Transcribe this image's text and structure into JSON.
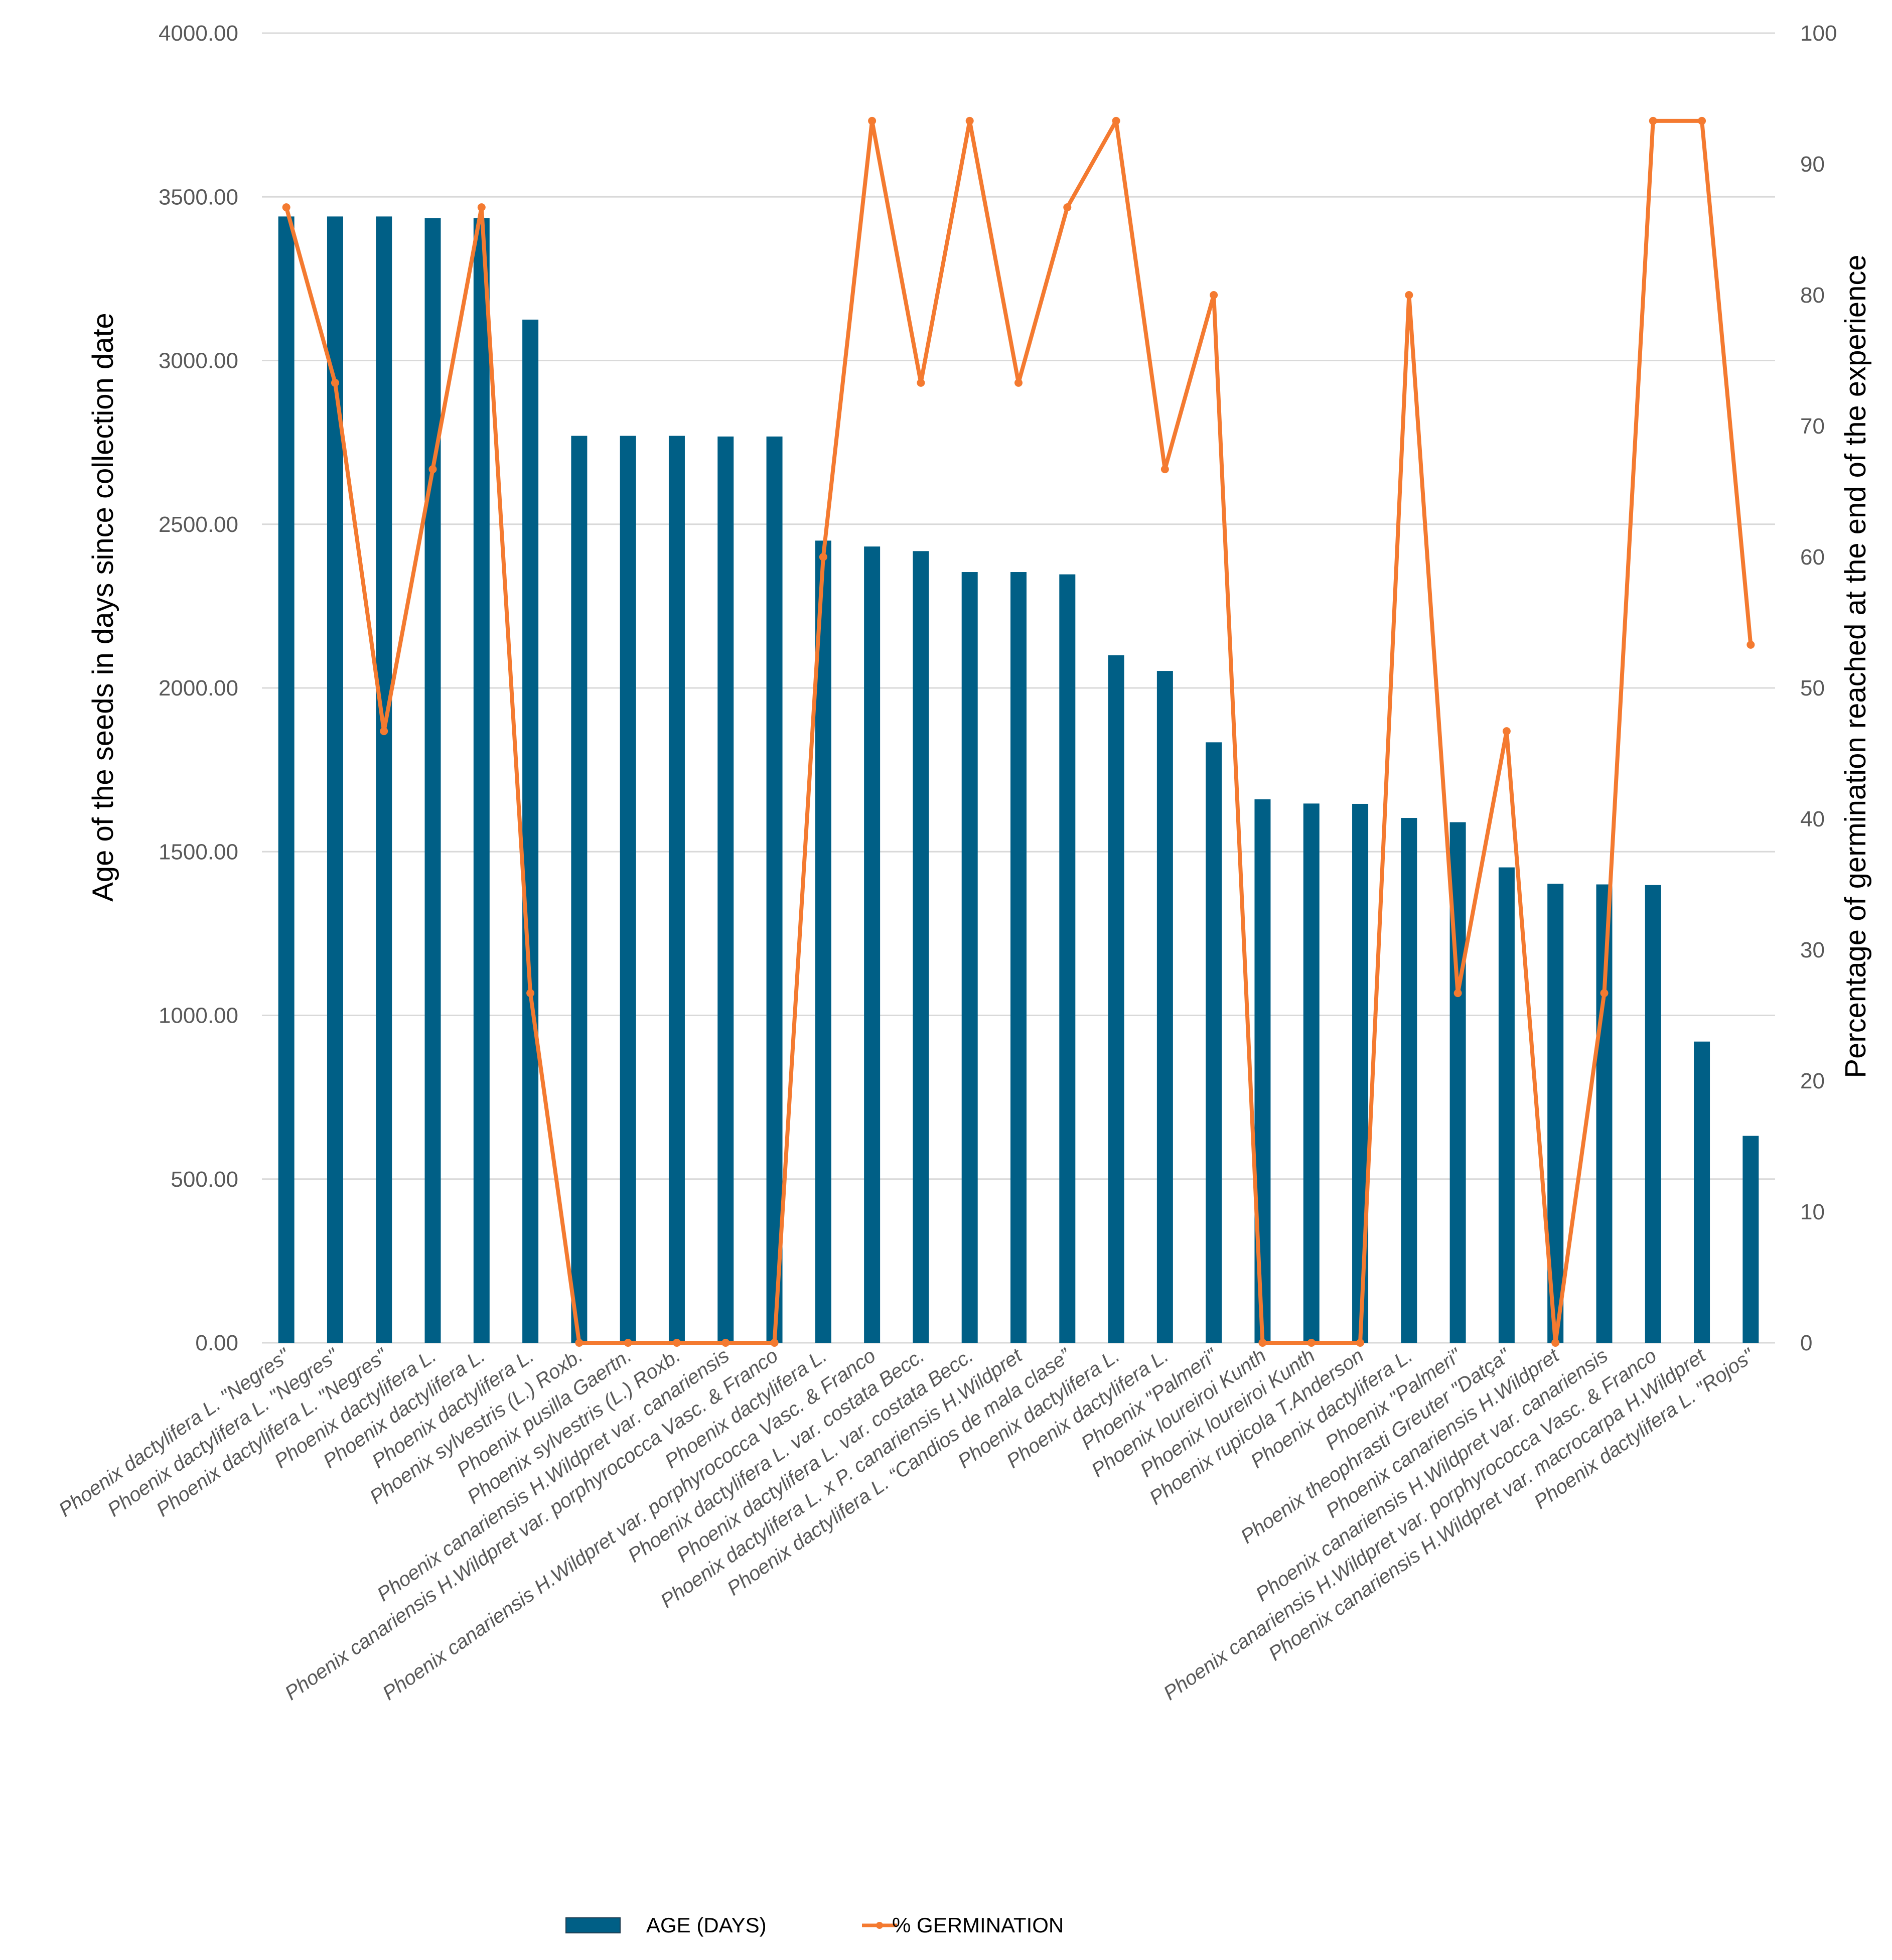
{
  "chart_data": {
    "type": "bar",
    "title": "",
    "xlabel": "",
    "ylabel": "Age of the seeds in days since collection date",
    "y2label": "Percentage of germination reached at the end of the experience",
    "ylim": [
      0,
      4000
    ],
    "y2lim": [
      0,
      100
    ],
    "yticks": [
      "0.00",
      "500.00",
      "1000.00",
      "1500.00",
      "2000.00",
      "2500.00",
      "3000.00",
      "3500.00",
      "4000.00"
    ],
    "y2ticks": [
      "0",
      "10",
      "20",
      "30",
      "40",
      "50",
      "60",
      "70",
      "80",
      "90",
      "100"
    ],
    "grid": true,
    "legend_position": "bottom",
    "categories": [
      "Phoenix dactylifera L. \"Negres\"",
      "Phoenix dactylifera L. \"Negres\"",
      "Phoenix dactylifera L. \"Negres\"",
      "Phoenix dactylifera L.",
      "Phoenix dactylifera L.",
      "Phoenix dactylifera L.",
      "Phoenix sylvestris (L.) Roxb.",
      "Phoenix pusilla Gaertn.",
      "Phoenix sylvestris (L.) Roxb.",
      "Phoenix canariensis H.Wildpret var. canariensis",
      "Phoenix canariensis H.Wildpret var. porphyrococca Vasc. & Franco",
      "Phoenix dactylifera L.",
      "Phoenix canariensis H.Wildpret var. porphyrococca Vasc. & Franco",
      "Phoenix dactylifera L. var. costata Becc.",
      "Phoenix dactylifera L. var. costata Becc.",
      "Phoenix dactylifera L. x P. canariensis H.Wildpret",
      "Phoenix dactylifera L. “Candios de mala clase”",
      "Phoenix dactylifera L.",
      "Phoenix dactylifera L.",
      "Phoenix \"Palmeri\"",
      "Phoenix loureiroi Kunth",
      "Phoenix loureiroi Kunth",
      "Phoenix rupicola T.Anderson",
      "Phoenix dactylifera L.",
      "Phoenix \"Palmeri\"",
      "Phoenix theophrasti Greuter \"Datça\"",
      "Phoenix canariensis H.Wildpret",
      "Phoenix canariensis H.Wildpret var. canariensis",
      "Phoenix canariensis H.Wildpret var. porphyrococca Vasc. & Franco",
      "Phoenix canariensis H.Wildpret var. macrocarpa H.Wildpret",
      "Phoenix dactylifera L. \"Rojos\""
    ],
    "series": [
      {
        "name": "AGE (DAYS)",
        "type": "bar",
        "axis": "left",
        "color": "#005f86",
        "values": [
          3440,
          3440,
          3440,
          3435,
          3435,
          3125,
          2770,
          2770,
          2770,
          2768,
          2768,
          2450,
          2432,
          2418,
          2354,
          2354,
          2347,
          2100,
          2052,
          1834,
          1660,
          1647,
          1646,
          1603,
          1590,
          1452,
          1402,
          1400,
          1398,
          920,
          632
        ]
      },
      {
        "name": "% GERMINATION",
        "type": "line",
        "axis": "right",
        "color": "#f47a30",
        "values": [
          86.7,
          73.3,
          46.7,
          66.7,
          86.7,
          26.7,
          0,
          0,
          0,
          0,
          0,
          60,
          93.3,
          73.3,
          93.3,
          73.3,
          86.7,
          93.3,
          66.7,
          80,
          0,
          0,
          0,
          80,
          26.7,
          46.7,
          0,
          26.7,
          93.3,
          93.3,
          53.3
        ]
      }
    ]
  }
}
